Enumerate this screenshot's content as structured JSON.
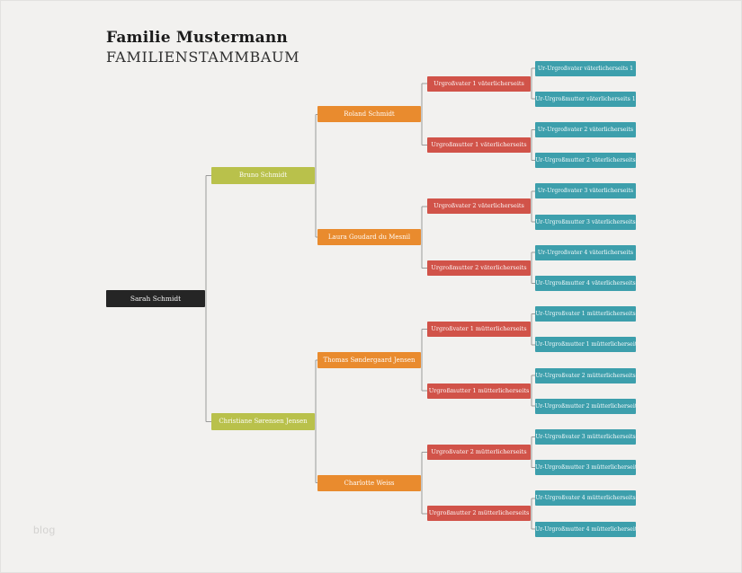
{
  "header": {
    "title": "Familie Mustermann",
    "subtitle": "FAMILIENSTAMMBAUM"
  },
  "watermark": "blog",
  "colors": {
    "background": "#f2f1ef",
    "connector": "#9a9a9a",
    "gen0": "#252525",
    "gen1": "#b9c14b",
    "gen2": "#e98b2e",
    "gen3": "#d15349",
    "gen4": "#3d9fac"
  },
  "tree": {
    "generations": [
      {
        "color": "#252525",
        "nodes": [
          "Sarah Schmidt"
        ]
      },
      {
        "color": "#b9c14b",
        "nodes": [
          "Bruno Schmidt",
          "Christiane Sørensen Jensen"
        ]
      },
      {
        "color": "#e98b2e",
        "nodes": [
          "Roland Schmidt",
          "Laura Goudard du Mesnil",
          "Thomas Søndergaard Jensen",
          "Charlotte Weiss"
        ]
      },
      {
        "color": "#d15349",
        "nodes": [
          "Urgroßvater 1 väterlicherseits",
          "Urgroßmutter 1 väterlicherseits",
          "Urgroßvater 2 väterlicherseits",
          "Urgroßmutter 2 väterlicherseits",
          "Urgroßvater 1 mütterlicherseits",
          "Urgroßmutter 1 mütterlicherseits",
          "Urgroßvater 2 mütterlicherseits",
          "Urgroßmutter 2 mütterlicherseits"
        ]
      },
      {
        "color": "#3d9fac",
        "nodes": [
          "Ur-Urgroßvater väterlicherseits 1",
          "Ur-Urgroßmutter väterlicherseits 1",
          "Ur-Urgroßvater 2 väterlicherseits",
          "Ur-Urgroßmutter 2 väterlicherseits",
          "Ur-Urgroßvater 3 väterlicherseits",
          "Ur-Urgroßmutter 3 väterlicherseits",
          "Ur-Urgroßvater 4 väterlicherseits",
          "Ur-Urgroßmutter 4 väterlicherseits",
          "Ur-Urgroßvater 1 mütterlicherseits",
          "Ur-Urgroßmutter 1 mütterlicherseits",
          "Ur-Urgroßvater 2 mütterlicherseits",
          "Ur-Urgroßmutter 2 mütterlicherseits",
          "Ur-Urgroßvater 3 mütterlicherseits",
          "Ur-Urgroßmutter 3 mütterlicherseits",
          "Ur-Urgroßvater 4 mütterlicherseits",
          "Ur-Urgroßmutter 4 mütterlicherseits"
        ]
      }
    ]
  }
}
